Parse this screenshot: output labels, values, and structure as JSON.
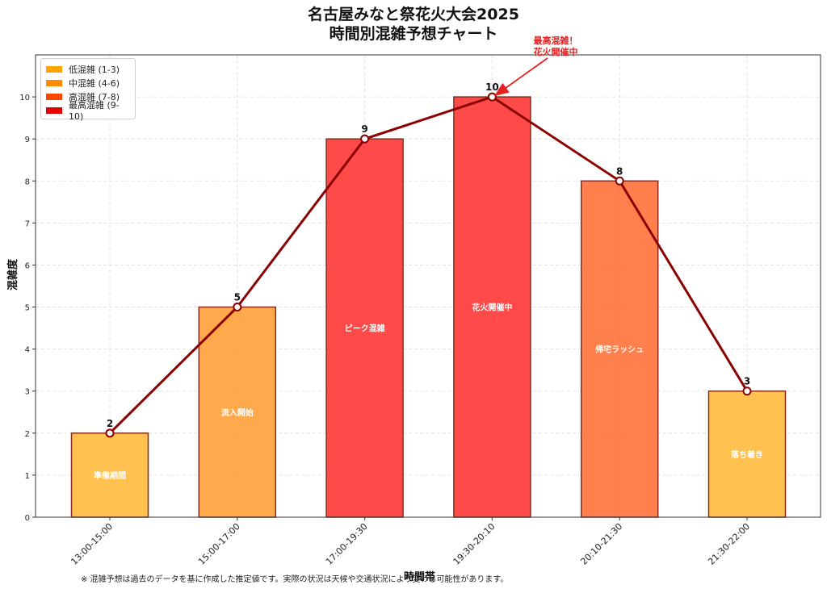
{
  "title_line1": "名古屋みなと祭花火大会2025",
  "title_line2": "時間別混雑予想チャート",
  "footnote": "※ 混雑予想は過去のデータを基に作成した推定値です。実際の状況は天候や交通状況により変わる可能性があります。",
  "chart_data": {
    "type": "bar",
    "title": "名古屋みなと祭花火大会2025 時間別混雑予想チャート",
    "xlabel": "時間帯",
    "ylabel": "混雑度",
    "ylim": [
      0,
      11
    ],
    "yticks": [
      0,
      1,
      2,
      3,
      4,
      5,
      6,
      7,
      8,
      9,
      10
    ],
    "grid": true,
    "legend_position": "top-left",
    "categories": [
      "13:00-15:00",
      "15:00-17:00",
      "17:00-19:30",
      "19:30-20:10",
      "20:10-21:30",
      "21:30-22:00"
    ],
    "values": [
      2,
      5,
      9,
      10,
      8,
      3
    ],
    "bar_labels": [
      "準備期間",
      "流入開始",
      "ピーク混雑",
      "花火開催中",
      "帰宅ラッシュ",
      "落ち着き"
    ],
    "bar_colors": [
      "#ffb733",
      "#ff9a2e",
      "#ff2a2a",
      "#ff2a2a",
      "#ff6a2e",
      "#ffb733"
    ],
    "line_color": "#8b0000",
    "legend": [
      {
        "label": "低混雑 (1-3)",
        "color": "#ffa500"
      },
      {
        "label": "中混雑 (4-6)",
        "color": "#ff8c00"
      },
      {
        "label": "高混雑 (7-8)",
        "color": "#ff4500"
      },
      {
        "label": "最高混雑 (9-10)",
        "color": "#e60000"
      }
    ],
    "annotation": {
      "text_line1": "最高混雑！",
      "text_line2": "花火開催中",
      "category_index": 3,
      "value": 10,
      "color": "#e62020"
    }
  }
}
